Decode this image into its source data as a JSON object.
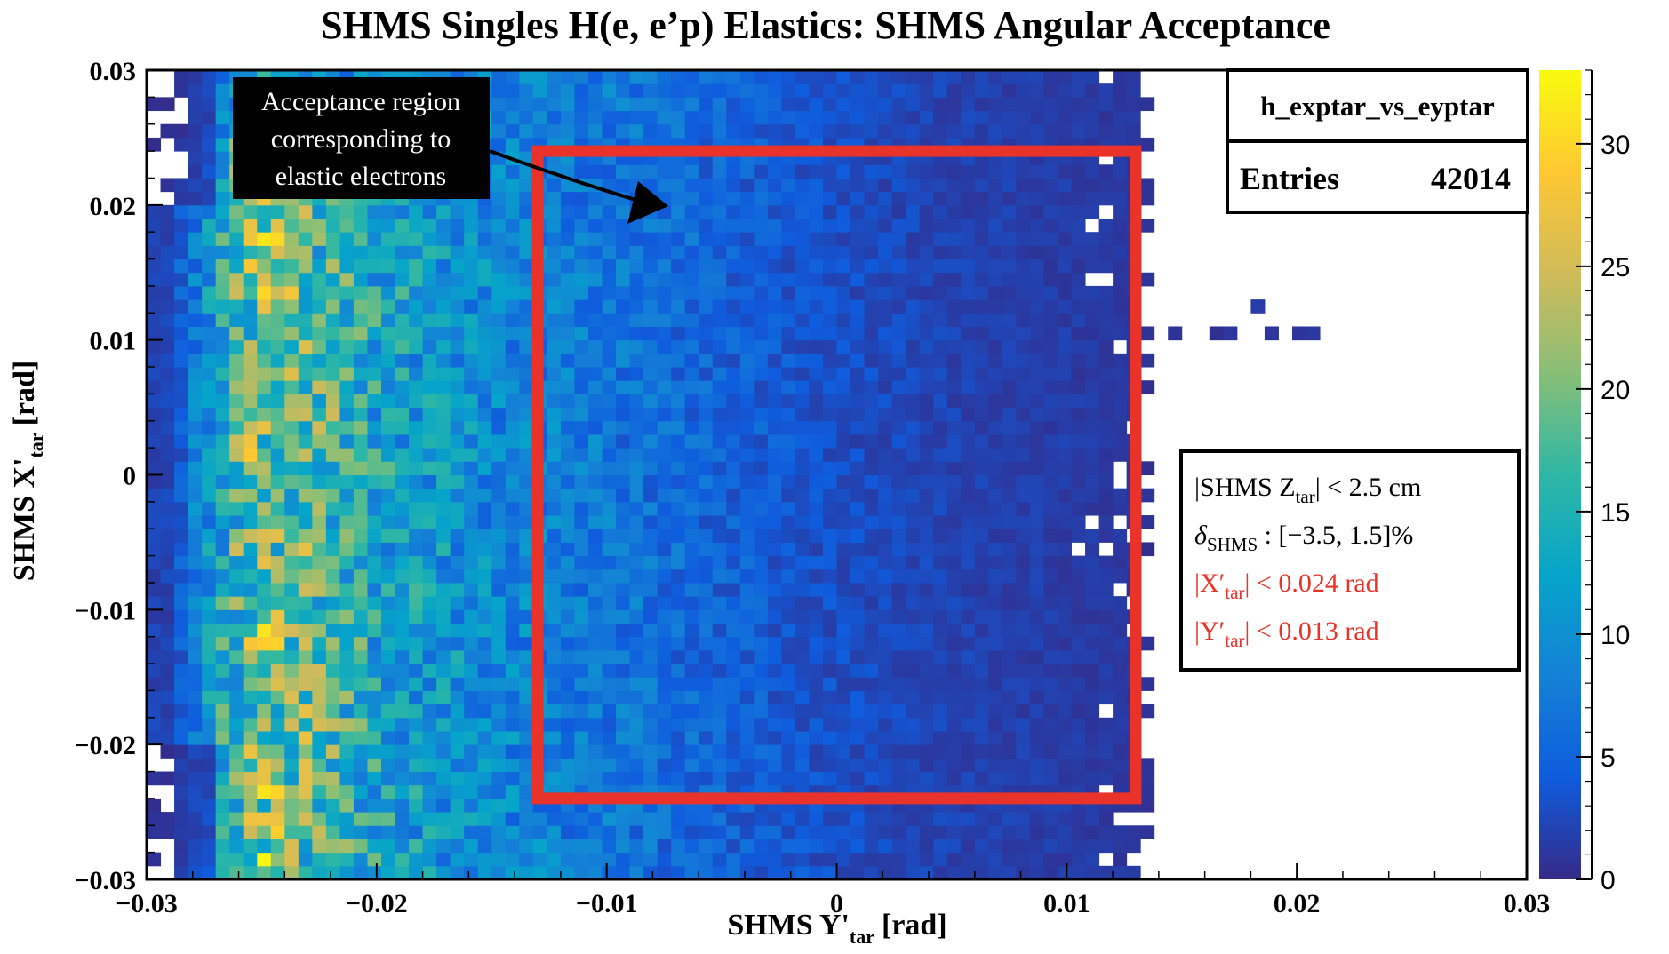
{
  "chart_data": {
    "type": "heatmap",
    "title": "SHMS Singles H(e, e’p) Elastics: SHMS Angular Acceptance",
    "xlabel": {
      "main": "SHMS Y'",
      "sub": "tar",
      "unit": "[rad]"
    },
    "ylabel": {
      "main": "SHMS X'",
      "sub": "tar",
      "unit": "[rad]"
    },
    "xlim": [
      -0.03,
      0.03
    ],
    "ylim": [
      -0.03,
      0.03
    ],
    "zlim": [
      0,
      33
    ],
    "bins": {
      "nx": 100,
      "ny": 60
    },
    "x_ticks": [
      {
        "v": -0.03,
        "label": "−0.03"
      },
      {
        "v": -0.02,
        "label": "−0.02"
      },
      {
        "v": -0.01,
        "label": "−0.01"
      },
      {
        "v": 0,
        "label": "0"
      },
      {
        "v": 0.01,
        "label": "0.01"
      },
      {
        "v": 0.02,
        "label": "0.02"
      },
      {
        "v": 0.03,
        "label": "0.03"
      }
    ],
    "y_ticks": [
      {
        "v": -0.03,
        "label": "−0.03"
      },
      {
        "v": -0.02,
        "label": "−0.02"
      },
      {
        "v": -0.01,
        "label": "−0.01"
      },
      {
        "v": 0,
        "label": "0"
      },
      {
        "v": 0.01,
        "label": "0.01"
      },
      {
        "v": 0.02,
        "label": "0.02"
      },
      {
        "v": 0.03,
        "label": "0.03"
      }
    ],
    "z_ticks": [
      0,
      5,
      10,
      15,
      20,
      25,
      30
    ],
    "palette": [
      "#352a87",
      "#0f5cdd",
      "#1481d6",
      "#06a4ca",
      "#2eb7a4",
      "#87bf77",
      "#d1bb59",
      "#fec832",
      "#f9fb0e"
    ],
    "density_profile": [
      {
        "y_prime": -0.029,
        "counts": 2
      },
      {
        "y_prime": -0.025,
        "counts": 22
      },
      {
        "y_prime": -0.02,
        "counts": 13
      },
      {
        "y_prime": -0.015,
        "counts": 9
      },
      {
        "y_prime": -0.01,
        "counts": 7
      },
      {
        "y_prime": -0.005,
        "counts": 5
      },
      {
        "y_prime": 0,
        "counts": 3
      },
      {
        "y_prime": 0.005,
        "counts": 2
      },
      {
        "y_prime": 0.01,
        "counts": 1.5
      },
      {
        "y_prime": 0.013,
        "counts": 1
      }
    ],
    "stats_box": {
      "name": "h_exptar_vs_eyptar",
      "entries_label": "Entries",
      "entries_value": "42014"
    },
    "cut_box": {
      "x_cut": 0.024,
      "y_cut": 0.013,
      "lines": [
        {
          "text": "|SHMS Z",
          "sub": "tar",
          "rest": "| < 2.5 cm",
          "color": "#000000"
        },
        {
          "text": "δ",
          "sub": "SHMS",
          "rest": " : [−3.5, 1.5]%",
          "color": "#000000"
        },
        {
          "text": "|X′",
          "sub": "tar",
          "rest": "| < 0.024 rad",
          "color": "#e8322a"
        },
        {
          "text": "|Y′",
          "sub": "tar",
          "rest": "| < 0.013 rad",
          "color": "#e8322a"
        }
      ]
    },
    "annotation": {
      "lines": [
        "Acceptance region",
        "corresponding to",
        "elastic electrons"
      ],
      "points_to": {
        "x": -0.0075,
        "y": 0.021
      }
    },
    "colors": {
      "cut_box": "#e8322a",
      "annotation_bg": "#000000"
    }
  }
}
